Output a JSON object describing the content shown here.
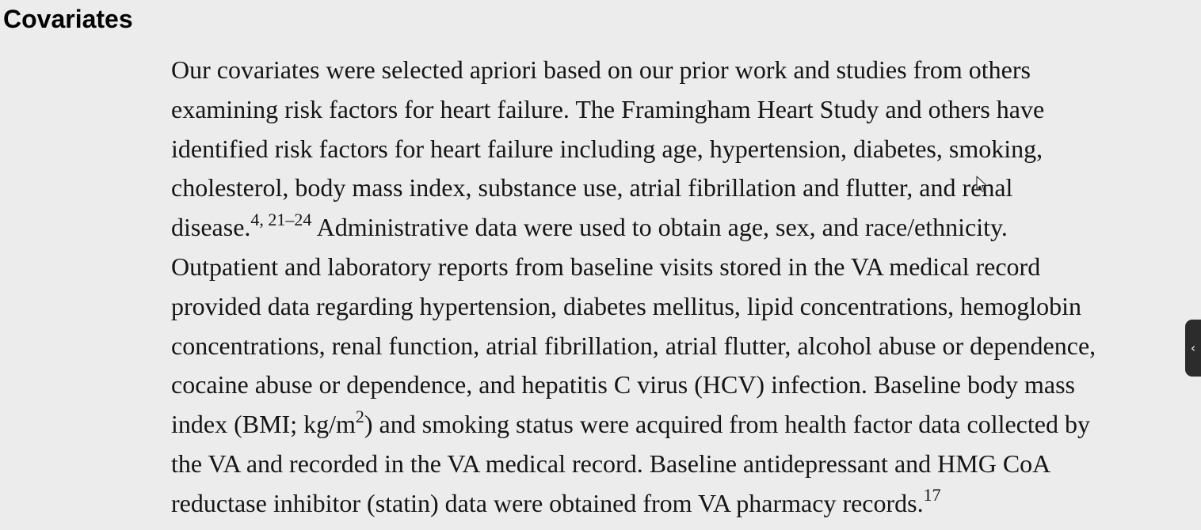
{
  "heading": "Covariates",
  "lines": [
    {
      "text": "Our covariates were selected apriori based on our prior work and studies from others"
    },
    {
      "text": "examining risk factors for heart failure. The Framingham Heart Study and others have"
    },
    {
      "text": "identified risk factors for heart failure including age, hypertension, diabetes, smoking,"
    },
    {
      "text": "cholesterol, body mass index, substance use, atrial fibrillation and flutter, and renal"
    },
    {
      "text": "disease.",
      "sup": "4, 21–24",
      "after": " Administrative data were used to obtain age, sex, and race/ethnicity."
    },
    {
      "text": "Outpatient and laboratory reports from baseline visits stored in the VA medical record"
    },
    {
      "text": "provided data regarding hypertension, diabetes mellitus, lipid concentrations, hemoglobin"
    },
    {
      "text": "concentrations, renal function, atrial fibrillation, atrial flutter, alcohol abuse or dependence,"
    },
    {
      "text": "cocaine abuse or dependence, and hepatitis C virus (HCV) infection. Baseline body mass"
    },
    {
      "text": "index (BMI; kg/m",
      "sup": "2",
      "after": ") and smoking status were acquired from health factor data collected by"
    },
    {
      "text": "the VA and recorded in the VA medical record. Baseline antidepressant and HMG CoA"
    },
    {
      "text": "reductase inhibitor (statin) data were obtained from VA pharmacy records.",
      "sup": "17",
      "after": ""
    }
  ],
  "side_tab": {
    "icon": "chevron-left-icon",
    "glyph": "‹"
  }
}
